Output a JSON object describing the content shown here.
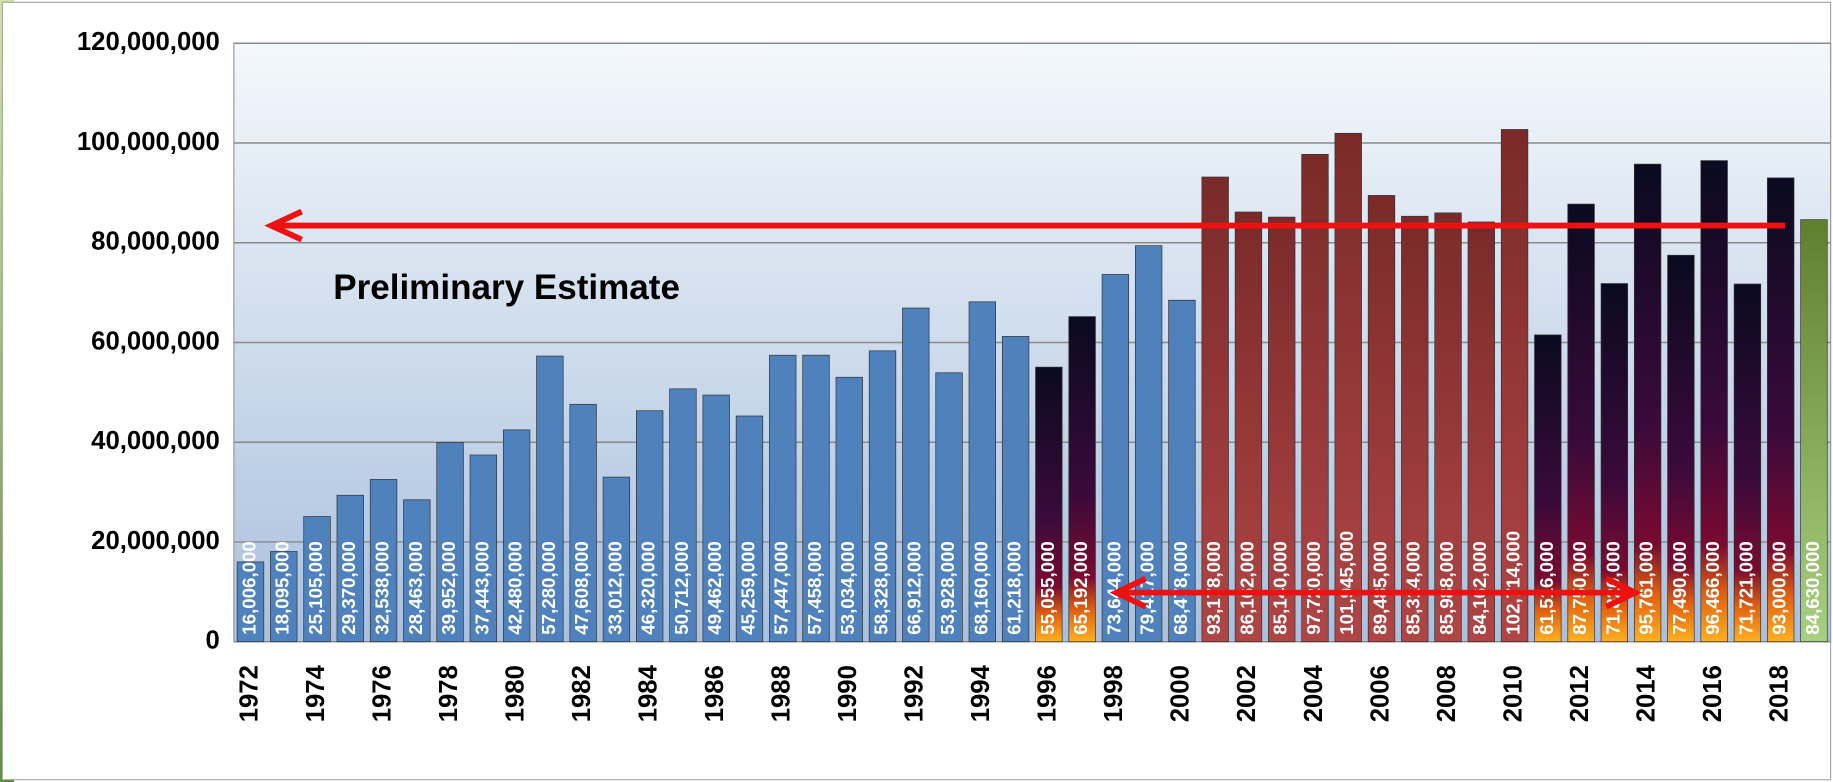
{
  "chart_data": {
    "type": "bar",
    "annotation": "Preliminary Estimate",
    "categories": [
      "1972",
      null,
      "1974",
      null,
      "1976",
      null,
      "1978",
      null,
      "1980",
      null,
      "1982",
      null,
      "1984",
      null,
      "1986",
      null,
      "1988",
      null,
      "1990",
      null,
      "1992",
      null,
      "1994",
      null,
      "1996",
      null,
      "1998",
      null,
      "2000",
      null,
      "2002",
      null,
      "2004",
      null,
      "2006",
      null,
      "2008",
      null,
      "2010",
      null,
      "2012",
      null,
      "2014",
      null,
      "2016",
      null,
      "2018",
      null
    ],
    "values": [
      16006000,
      18095000,
      25105000,
      29370000,
      32538000,
      28463000,
      39952000,
      37443000,
      42480000,
      57280000,
      47608000,
      33012000,
      46320000,
      50712000,
      49462000,
      45259000,
      57447000,
      57458000,
      53034000,
      58328000,
      66912000,
      53928000,
      68160000,
      61218000,
      55055000,
      65192000,
      73644000,
      79417000,
      68478000,
      93178000,
      86162000,
      85140000,
      97720000,
      101945000,
      89485000,
      85314000,
      85988000,
      84162000,
      102714000,
      61516000,
      87750000,
      71820000,
      95761000,
      77490000,
      96466000,
      71721000,
      93000000,
      84630000
    ],
    "value_labels": [
      "16,006,000",
      "18,095,000",
      "25,105,000",
      "29,370,000",
      "32,538,000",
      "28,463,000",
      "39,952,000",
      "37,443,000",
      "42,480,000",
      "57,280,000",
      "47,608,000",
      "33,012,000",
      "46,320,000",
      "50,712,000",
      "49,462,000",
      "45,259,000",
      "57,447,000",
      "57,458,000",
      "53,034,000",
      "58,328,000",
      "66,912,000",
      "53,928,000",
      "68,160,000",
      "61,218,000",
      "55,055,000",
      "65,192,000",
      "73,644,000",
      "79,417,000",
      "68,478,000",
      "93,178,000",
      "86,162,000",
      "85,140,000",
      "97,720,000",
      "101,945,000",
      "89,485,000",
      "85,314,000",
      "85,988,000",
      "84,162,000",
      "102,714,000",
      "61,516,000",
      "87,750,000",
      "71,820,000",
      "95,761,000",
      "77,490,000",
      "96,466,000",
      "71,721,000",
      "93,000,000",
      "84,630,000"
    ],
    "colors": [
      "#4f81bd",
      "#4f81bd",
      "#4f81bd",
      "#4f81bd",
      "#4f81bd",
      "#4f81bd",
      "#4f81bd",
      "#4f81bd",
      "#4f81bd",
      "#4f81bd",
      "#4f81bd",
      "#4f81bd",
      "#4f81bd",
      "#4f81bd",
      "#4f81bd",
      "#4f81bd",
      "#4f81bd",
      "#4f81bd",
      "#4f81bd",
      "#4f81bd",
      "#4f81bd",
      "#4f81bd",
      "#4f81bd",
      "#4f81bd",
      "#0a0a20",
      "#0a0a20",
      "#4f81bd",
      "#4f81bd",
      "#4f81bd",
      "#953735",
      "#953735",
      "#953735",
      "#953735",
      "#953735",
      "#953735",
      "#953735",
      "#953735",
      "#953735",
      "#953735",
      "#0a0a20",
      "#0a0a20",
      "#0a0a20",
      "#0a0a20",
      "#0a0a20",
      "#0a0a20",
      "#0a0a20",
      "#0a0a20",
      "#5f7f2f"
    ],
    "ylim": [
      0,
      120000000
    ],
    "yticks": [
      0,
      {
        "value": 20000000,
        "label": "20,000,000"
      },
      {
        "value": 40000000,
        "label": "40,000,000"
      },
      {
        "value": 60000000,
        "label": "60,000,000"
      },
      {
        "value": 80000000,
        "label": "80,000,000"
      },
      {
        "value": 100000000,
        "label": "100,000,000"
      },
      {
        "value": 120000000,
        "label": "120,000,000"
      }
    ],
    "grid": true
  }
}
